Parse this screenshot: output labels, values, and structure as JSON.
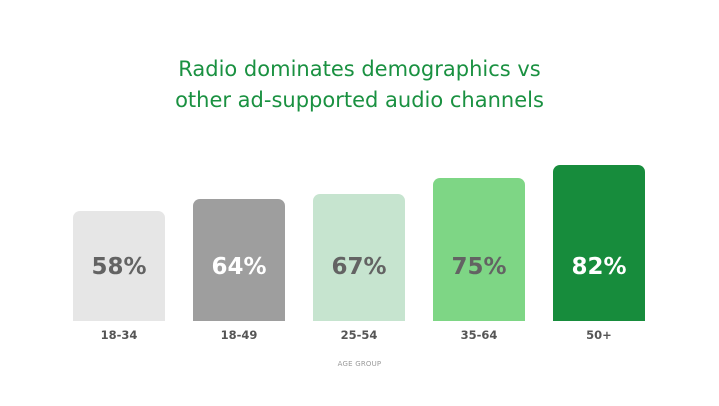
{
  "chart_data": {
    "type": "bar",
    "title": "Radio dominates demographics vs other ad-supported audio channels",
    "title_lines": [
      "Radio dominates demographics vs",
      "other ad-supported audio channels"
    ],
    "categories": [
      "18-34",
      "18-49",
      "25-54",
      "35-64",
      "50+"
    ],
    "values": [
      58,
      64,
      67,
      75,
      82
    ],
    "value_labels": [
      "58%",
      "64%",
      "67%",
      "75%",
      "82%"
    ],
    "xlabel": "AGE GROUP",
    "ylabel": "",
    "grid": false,
    "legend": null,
    "bar_colors": [
      "#e6e6e6",
      "#9e9e9e",
      "#c6e4cf",
      "#7ed685",
      "#178c3c"
    ],
    "label_colors": [
      "#636363",
      "#ffffff",
      "#636363",
      "#636363",
      "#ffffff"
    ]
  }
}
